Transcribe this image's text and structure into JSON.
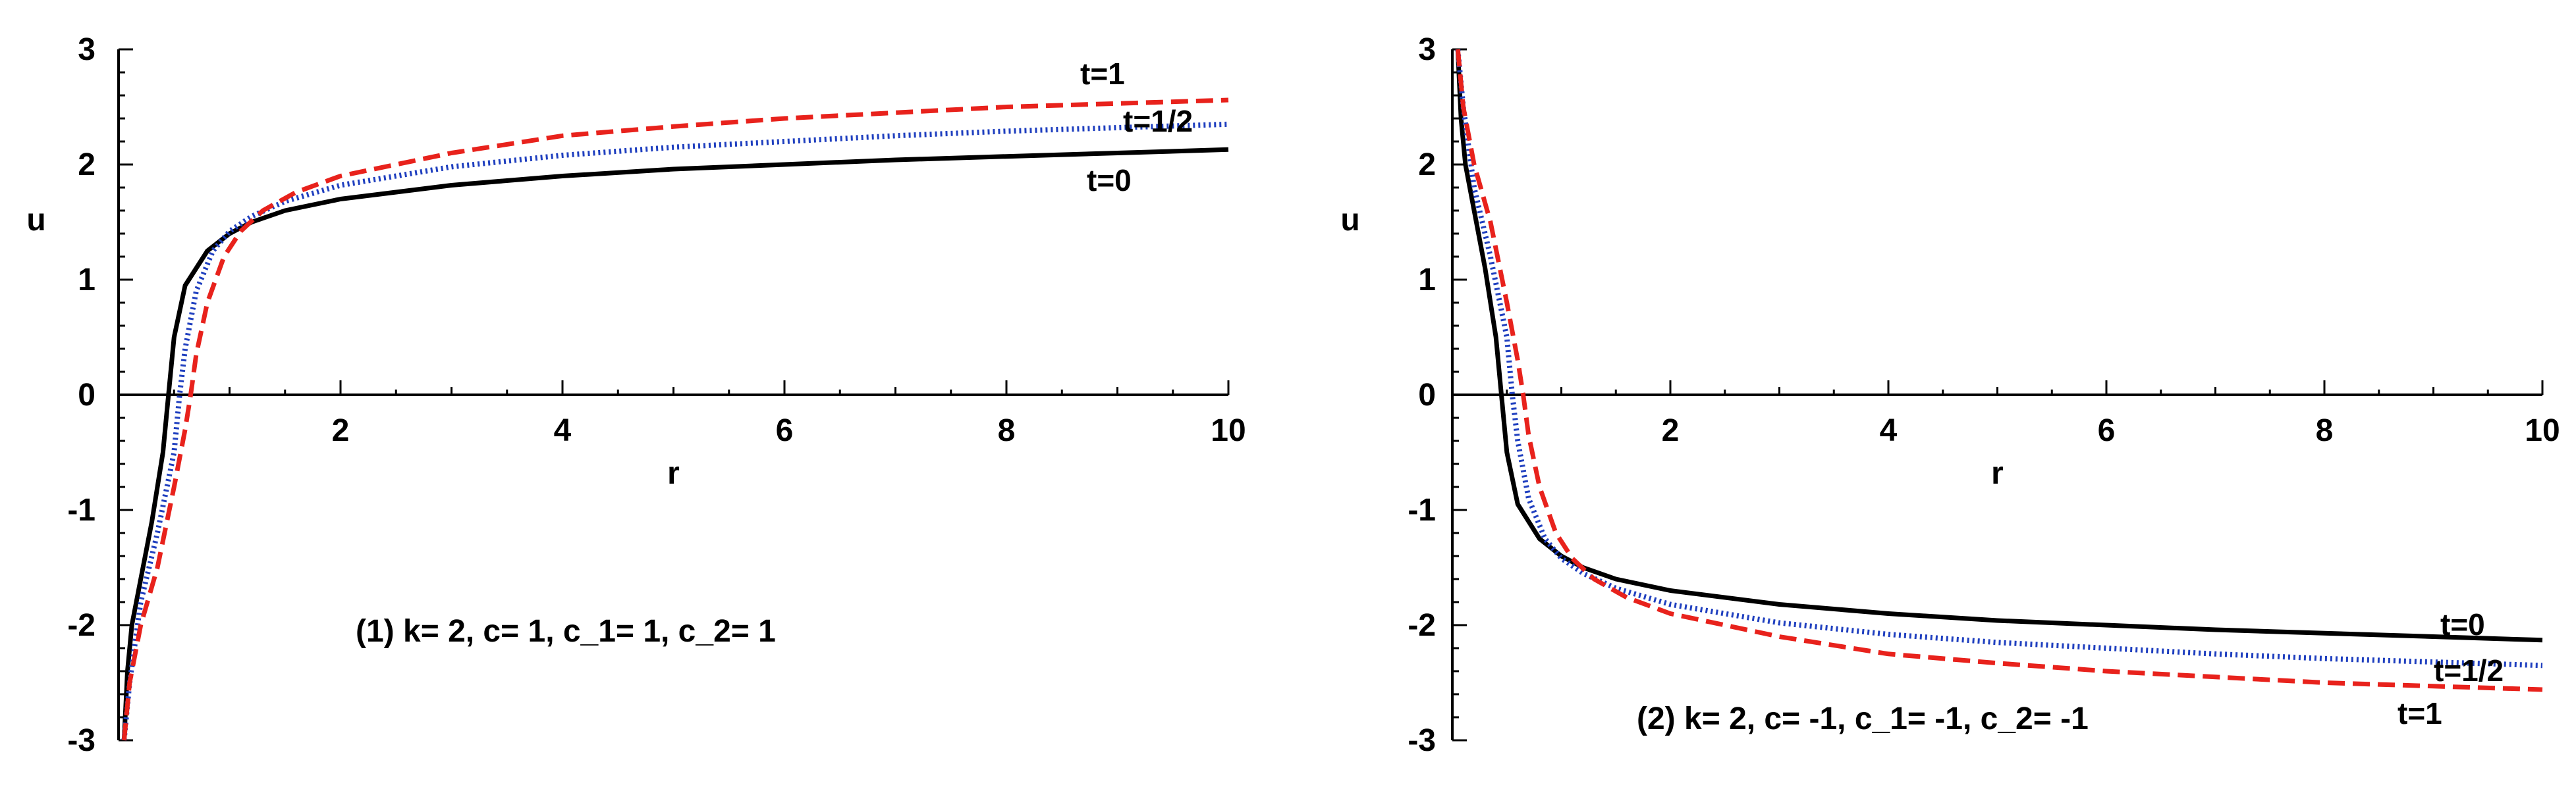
{
  "chart_data": [
    {
      "type": "line",
      "xlabel": "r",
      "ylabel": "u",
      "xlim": [
        0,
        10
      ],
      "ylim": [
        -3,
        3
      ],
      "x_ticks": [
        "2",
        "4",
        "6",
        "8",
        "10"
      ],
      "y_ticks": [
        "3",
        "2",
        "1",
        "0",
        "-1",
        "-2",
        "-3"
      ],
      "grid": false,
      "annotation": "(1) k= 2, c= 1, c_1= 1, c_2= 1",
      "series": [
        {
          "name": "t=0",
          "color": "#000000",
          "style": "solid",
          "x": [
            0.05,
            0.08,
            0.12,
            0.2,
            0.3,
            0.4,
            0.45,
            0.5,
            0.6,
            0.8,
            1.0,
            1.2,
            1.5,
            2,
            3,
            4,
            5,
            6,
            7,
            8,
            9,
            10
          ],
          "y": [
            -3.0,
            -2.4,
            -2.0,
            -1.6,
            -1.1,
            -0.5,
            0.0,
            0.5,
            0.95,
            1.25,
            1.4,
            1.5,
            1.6,
            1.7,
            1.82,
            1.9,
            1.96,
            2.0,
            2.04,
            2.07,
            2.1,
            2.13
          ]
        },
        {
          "name": "t=1/2",
          "color": "#1f3fbf",
          "style": "dotted",
          "x": [
            0.05,
            0.1,
            0.2,
            0.35,
            0.5,
            0.55,
            0.6,
            0.7,
            0.85,
            1.0,
            1.2,
            1.5,
            2,
            3,
            4,
            5,
            6,
            7,
            8,
            9,
            10
          ],
          "y": [
            -3.0,
            -2.5,
            -1.8,
            -1.2,
            -0.5,
            0.0,
            0.4,
            0.9,
            1.25,
            1.42,
            1.55,
            1.68,
            1.82,
            1.98,
            2.08,
            2.15,
            2.2,
            2.25,
            2.29,
            2.32,
            2.35
          ]
        },
        {
          "name": "t=1",
          "color": "#e8221c",
          "style": "dashed",
          "x": [
            0.05,
            0.1,
            0.2,
            0.35,
            0.5,
            0.6,
            0.65,
            0.7,
            0.8,
            0.95,
            1.1,
            1.3,
            1.6,
            2,
            3,
            4,
            5,
            6,
            7,
            8,
            9,
            10
          ],
          "y": [
            -3.0,
            -2.5,
            -2.0,
            -1.5,
            -0.8,
            -0.3,
            0.0,
            0.35,
            0.8,
            1.2,
            1.42,
            1.6,
            1.76,
            1.9,
            2.1,
            2.25,
            2.33,
            2.4,
            2.45,
            2.5,
            2.53,
            2.56
          ]
        }
      ],
      "curve_labels": [
        {
          "text": "t=1",
          "series": "t=1"
        },
        {
          "text": "t=1/2",
          "series": "t=1/2"
        },
        {
          "text": "t=0",
          "series": "t=0"
        }
      ]
    },
    {
      "type": "line",
      "xlabel": "r",
      "ylabel": "u",
      "xlim": [
        0,
        10
      ],
      "ylim": [
        -3,
        3
      ],
      "x_ticks": [
        "2",
        "4",
        "6",
        "8",
        "10"
      ],
      "y_ticks": [
        "3",
        "2",
        "1",
        "0",
        "-1",
        "-2",
        "-3"
      ],
      "grid": false,
      "annotation": "(2) k= 2, c= -1, c_1= -1, c_2= -1",
      "series": [
        {
          "name": "t=0",
          "color": "#000000",
          "style": "solid",
          "x": [
            0.05,
            0.08,
            0.12,
            0.2,
            0.3,
            0.4,
            0.45,
            0.5,
            0.6,
            0.8,
            1.0,
            1.2,
            1.5,
            2,
            3,
            4,
            5,
            6,
            7,
            8,
            9,
            10
          ],
          "y": [
            3.0,
            2.4,
            2.0,
            1.6,
            1.1,
            0.5,
            0.0,
            -0.5,
            -0.95,
            -1.25,
            -1.4,
            -1.5,
            -1.6,
            -1.7,
            -1.82,
            -1.9,
            -1.96,
            -2.0,
            -2.04,
            -2.07,
            -2.1,
            -2.13
          ]
        },
        {
          "name": "t=1/2",
          "color": "#1f3fbf",
          "style": "dotted",
          "x": [
            0.05,
            0.1,
            0.2,
            0.35,
            0.5,
            0.55,
            0.6,
            0.7,
            0.85,
            1.0,
            1.2,
            1.5,
            2,
            3,
            4,
            5,
            6,
            7,
            8,
            9,
            10
          ],
          "y": [
            3.0,
            2.5,
            1.8,
            1.2,
            0.5,
            0.0,
            -0.4,
            -0.9,
            -1.25,
            -1.42,
            -1.55,
            -1.68,
            -1.82,
            -1.98,
            -2.08,
            -2.15,
            -2.2,
            -2.25,
            -2.29,
            -2.32,
            -2.35
          ]
        },
        {
          "name": "t=1",
          "color": "#e8221c",
          "style": "dashed",
          "x": [
            0.05,
            0.1,
            0.2,
            0.35,
            0.5,
            0.6,
            0.65,
            0.7,
            0.8,
            0.95,
            1.1,
            1.3,
            1.6,
            2,
            3,
            4,
            5,
            6,
            7,
            8,
            9,
            10
          ],
          "y": [
            3.0,
            2.5,
            2.0,
            1.5,
            0.8,
            0.3,
            0.0,
            -0.35,
            -0.8,
            -1.2,
            -1.42,
            -1.6,
            -1.76,
            -1.9,
            -2.1,
            -2.25,
            -2.33,
            -2.4,
            -2.45,
            -2.5,
            -2.53,
            -2.56
          ]
        }
      ],
      "curve_labels": [
        {
          "text": "t=0",
          "series": "t=0"
        },
        {
          "text": "t=1/2",
          "series": "t=1/2"
        },
        {
          "text": "t=1",
          "series": "t=1"
        }
      ]
    }
  ]
}
